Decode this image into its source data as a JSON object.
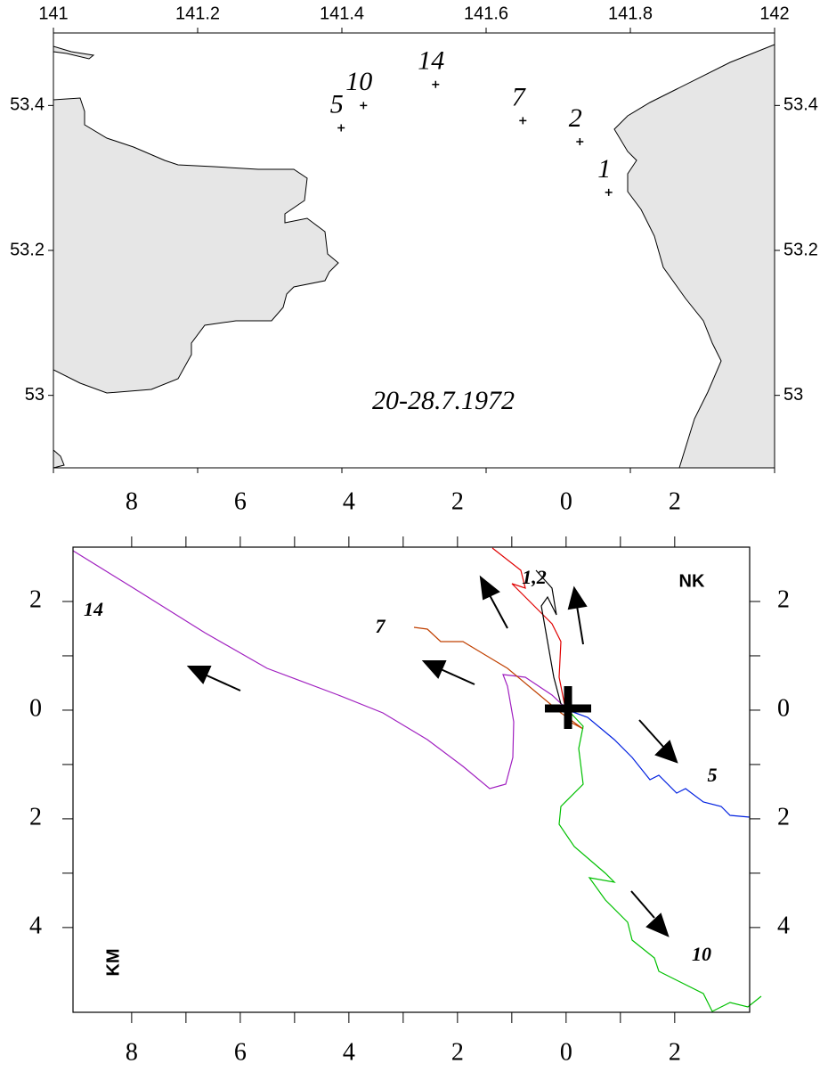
{
  "map": {
    "title": "20-28.7.1972",
    "xlim": [
      141,
      142
    ],
    "ylim": [
      52.9,
      53.5
    ],
    "xticks": [
      141,
      141.2,
      141.4,
      141.6,
      141.8,
      142
    ],
    "yticks": [
      53,
      53.2,
      53.4
    ],
    "stations": [
      {
        "label": "5",
        "lon": 141.399,
        "lat": 53.369
      },
      {
        "label": "10",
        "lon": 141.43,
        "lat": 53.4
      },
      {
        "label": "14",
        "lon": 141.53,
        "lat": 53.429
      },
      {
        "label": "7",
        "lon": 141.651,
        "lat": 53.379
      },
      {
        "label": "2",
        "lon": 141.73,
        "lat": 53.35
      },
      {
        "label": "1",
        "lon": 141.77,
        "lat": 53.28
      }
    ]
  },
  "drift": {
    "xlim": [
      -9.08,
      3.38
    ],
    "ylim": [
      -5.56,
      3
    ],
    "xticks": [
      {
        "value": -8,
        "label": "8"
      },
      {
        "value": -6,
        "label": "6"
      },
      {
        "value": -4,
        "label": "4"
      },
      {
        "value": -2,
        "label": "2"
      },
      0,
      2
    ],
    "yticks": [
      2,
      0,
      {
        "value": -2,
        "label": "2"
      },
      {
        "value": -4,
        "label": "4"
      }
    ],
    "labels": [
      "14",
      "7",
      "1,2",
      "NK",
      "5",
      "10"
    ],
    "axis_label": "KM"
  }
}
